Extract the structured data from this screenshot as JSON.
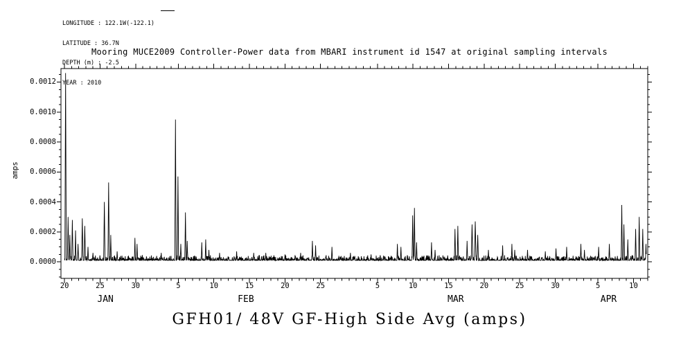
{
  "colors": {
    "foreground": "#000000",
    "background": "#ffffff"
  },
  "meta": {
    "lines": [
      "LONGITUDE : 122.1W(-122.1)",
      "LATITUDE : 36.7N",
      "DEPTH (m) : -2.5",
      "YEAR : 2010"
    ]
  },
  "title": "Mooring MUCE2009 Controller-Power data from MBARI instrument id 1547 at original sampling intervals",
  "bottom_title": "GFH01/ 48V GF-High Side Avg (amps)",
  "chart_data": {
    "type": "line",
    "title": "Mooring MUCE2009 Controller-Power data from MBARI instrument id 1547 at original sampling intervals",
    "subtitle": "GFH01/ 48V GF-High Side Avg (amps)",
    "ylabel": "amps",
    "xlabel": "",
    "grid": false,
    "legend_position": "none",
    "x_epoch": "2010-01-20",
    "x_domain_days": [
      -0.5,
      82
    ],
    "data_start_day": 0.0,
    "data_end_day": 81.8,
    "y_range": [
      -0.00011,
      0.00129
    ],
    "y_minor_step": 5e-05,
    "y_ticks": [
      {
        "v": 0.0,
        "label": "0.0000"
      },
      {
        "v": 0.0002,
        "label": "0.0002"
      },
      {
        "v": 0.0004,
        "label": "0.0004"
      },
      {
        "v": 0.0006,
        "label": "0.0006"
      },
      {
        "v": 0.0008,
        "label": "0.0008"
      },
      {
        "v": 0.001,
        "label": "0.0010"
      },
      {
        "v": 0.0012,
        "label": "0.0012"
      }
    ],
    "x_major_ticks": [
      {
        "day": 0,
        "label": "20"
      },
      {
        "day": 5,
        "label": "25"
      },
      {
        "day": 10,
        "label": "30"
      },
      {
        "day": 16,
        "label": "5"
      },
      {
        "day": 21,
        "label": "10"
      },
      {
        "day": 26,
        "label": "15"
      },
      {
        "day": 31,
        "label": "20"
      },
      {
        "day": 36,
        "label": "25"
      },
      {
        "day": 44,
        "label": "5"
      },
      {
        "day": 49,
        "label": "10"
      },
      {
        "day": 54,
        "label": "15"
      },
      {
        "day": 59,
        "label": "20"
      },
      {
        "day": 64,
        "label": "25"
      },
      {
        "day": 69,
        "label": "30"
      },
      {
        "day": 75,
        "label": "5"
      },
      {
        "day": 80,
        "label": "10"
      }
    ],
    "months": [
      {
        "label": "JAN",
        "center_day": 5.75
      },
      {
        "label": "FEB",
        "center_day": 25.5
      },
      {
        "label": "MAR",
        "center_day": 55.0
      },
      {
        "label": "APR",
        "center_day": 76.5
      }
    ],
    "baseline": {
      "base": 1e-05,
      "noise_amp": 3.5e-05
    },
    "spikes": [
      [
        0.15,
        0.00126,
        0.1
      ],
      [
        0.5,
        0.0003,
        0.1
      ],
      [
        0.75,
        0.00018,
        0.08
      ],
      [
        1.1,
        0.00028,
        0.1
      ],
      [
        1.55,
        0.00021,
        0.08
      ],
      [
        1.9,
        0.00012,
        0.08
      ],
      [
        2.5,
        0.00029,
        0.1
      ],
      [
        2.85,
        0.00024,
        0.1
      ],
      [
        3.3,
        0.0001,
        0.08
      ],
      [
        4.0,
        6e-05,
        0.08
      ],
      [
        5.6,
        0.0004,
        0.1
      ],
      [
        6.2,
        0.00053,
        0.1
      ],
      [
        6.5,
        0.00018,
        0.08
      ],
      [
        7.4,
        7e-05,
        0.08
      ],
      [
        9.9,
        0.00016,
        0.08
      ],
      [
        10.2,
        0.00012,
        0.08
      ],
      [
        13.6,
        6e-05,
        0.08
      ],
      [
        15.6,
        0.00095,
        0.1
      ],
      [
        15.95,
        0.00057,
        0.09
      ],
      [
        16.35,
        0.00012,
        0.08
      ],
      [
        17.0,
        0.00033,
        0.09
      ],
      [
        17.25,
        0.00014,
        0.08
      ],
      [
        19.3,
        0.00013,
        0.08
      ],
      [
        19.85,
        0.00015,
        0.08
      ],
      [
        20.3,
        8e-05,
        0.08
      ],
      [
        21.8,
        6e-05,
        0.08
      ],
      [
        24.2,
        7e-05,
        0.08
      ],
      [
        26.6,
        6e-05,
        0.08
      ],
      [
        28.3,
        6e-05,
        0.08
      ],
      [
        31.0,
        5e-05,
        0.08
      ],
      [
        33.2,
        6e-05,
        0.08
      ],
      [
        34.85,
        0.00014,
        0.08
      ],
      [
        35.3,
        0.00011,
        0.08
      ],
      [
        37.6,
        0.0001,
        0.08
      ],
      [
        40.2,
        6e-05,
        0.08
      ],
      [
        43.1,
        5e-05,
        0.08
      ],
      [
        46.8,
        0.00012,
        0.08
      ],
      [
        47.3,
        0.0001,
        0.08
      ],
      [
        48.95,
        0.00031,
        0.09
      ],
      [
        49.2,
        0.00036,
        0.09
      ],
      [
        49.5,
        0.00013,
        0.08
      ],
      [
        51.6,
        0.00013,
        0.08
      ],
      [
        52.1,
        8e-05,
        0.08
      ],
      [
        54.9,
        0.00022,
        0.09
      ],
      [
        55.3,
        0.00024,
        0.09
      ],
      [
        56.6,
        0.00014,
        0.08
      ],
      [
        57.3,
        0.00025,
        0.12
      ],
      [
        57.75,
        0.00027,
        0.12
      ],
      [
        58.1,
        0.00018,
        0.1
      ],
      [
        59.6,
        8e-05,
        0.08
      ],
      [
        61.6,
        0.00011,
        0.08
      ],
      [
        62.9,
        0.00012,
        0.08
      ],
      [
        63.3,
        8e-05,
        0.08
      ],
      [
        65.1,
        8e-05,
        0.08
      ],
      [
        67.6,
        7e-05,
        0.08
      ],
      [
        69.1,
        9e-05,
        0.08
      ],
      [
        70.6,
        0.0001,
        0.08
      ],
      [
        72.6,
        0.00012,
        0.08
      ],
      [
        73.1,
        8e-05,
        0.08
      ],
      [
        75.1,
        0.0001,
        0.08
      ],
      [
        76.6,
        0.00012,
        0.08
      ],
      [
        78.35,
        0.00038,
        0.09
      ],
      [
        78.65,
        0.00025,
        0.09
      ],
      [
        79.2,
        0.00015,
        0.08
      ],
      [
        80.3,
        0.00022,
        0.09
      ],
      [
        80.8,
        0.0003,
        0.09
      ],
      [
        81.3,
        0.00022,
        0.09
      ],
      [
        81.75,
        0.00012,
        0.08
      ]
    ]
  }
}
